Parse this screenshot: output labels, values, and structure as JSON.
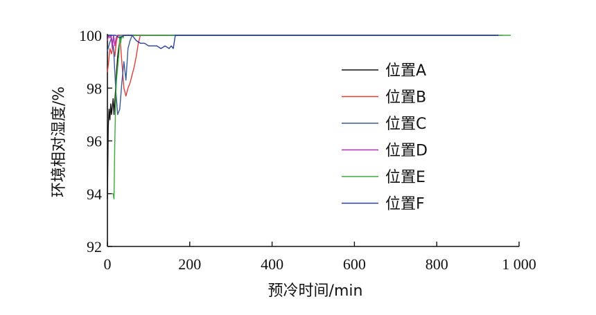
{
  "chart_data": {
    "type": "line",
    "xlabel": "预冷时间/min",
    "ylabel": "环境相对湿度/%",
    "xlim": [
      0,
      1000
    ],
    "ylim": [
      92,
      100
    ],
    "xticks": [
      0,
      200,
      400,
      600,
      800,
      1000
    ],
    "xtick_labels": [
      "0",
      "200",
      "400",
      "600",
      "800",
      "1 000"
    ],
    "yticks": [
      92,
      94,
      96,
      98,
      100
    ],
    "ytick_labels": [
      "92",
      "94",
      "96",
      "98",
      "100"
    ],
    "grid": false,
    "legend_position": "right",
    "series": [
      {
        "name": "位置A",
        "color": "#111111",
        "x": [
          0,
          2,
          4,
          6,
          8,
          10,
          12,
          14,
          16,
          18,
          20,
          22,
          25,
          28,
          32,
          36,
          40,
          950
        ],
        "y": [
          93.8,
          96.5,
          97.2,
          96.8,
          97.4,
          97.0,
          97.3,
          97.6,
          97.0,
          97.5,
          98.0,
          98.6,
          99.2,
          99.6,
          99.9,
          100,
          100,
          100
        ]
      },
      {
        "name": "位置B",
        "color": "#e03c3c",
        "x": [
          0,
          3,
          6,
          10,
          14,
          18,
          22,
          26,
          30,
          35,
          40,
          45,
          50,
          55,
          60,
          65,
          70,
          75,
          80,
          85,
          940
        ],
        "y": [
          98.6,
          99.0,
          99.5,
          99.3,
          99.6,
          99.2,
          99.8,
          100,
          100,
          99.0,
          98.0,
          97.7,
          98.0,
          98.2,
          98.5,
          98.8,
          99.2,
          99.7,
          100,
          100,
          100
        ]
      },
      {
        "name": "位置C",
        "color": "#3a5a9a",
        "x": [
          0,
          5,
          10,
          15,
          20,
          25,
          30,
          35,
          40,
          45,
          50,
          55,
          60,
          70,
          950
        ],
        "y": [
          99.4,
          99.7,
          99.9,
          99.5,
          98.0,
          97.0,
          97.2,
          98.2,
          99.0,
          98.3,
          99.5,
          99.8,
          100,
          100,
          100
        ]
      },
      {
        "name": "位置D",
        "color": "#b02fb0",
        "x": [
          0,
          3,
          6,
          9,
          12,
          15,
          18,
          21,
          25,
          30,
          960
        ],
        "y": [
          99.8,
          100,
          99.9,
          100,
          99.5,
          100,
          99.6,
          99.9,
          100,
          100,
          100
        ]
      },
      {
        "name": "位置E",
        "color": "#3cab3c",
        "x": [
          10,
          14,
          16,
          18,
          20,
          22,
          25,
          28,
          30,
          32,
          35,
          38,
          40,
          45,
          50,
          980
        ],
        "y": [
          94.0,
          94.0,
          93.8,
          96.0,
          97.5,
          98.3,
          98.8,
          99.3,
          100,
          99.7,
          100,
          99.9,
          100,
          100,
          100,
          100
        ]
      },
      {
        "name": "位置F",
        "color": "#2a3f9a",
        "x": [
          0,
          20,
          30,
          40,
          50,
          60,
          70,
          80,
          90,
          100,
          110,
          120,
          130,
          140,
          150,
          155,
          160,
          165,
          170,
          950
        ],
        "y": [
          100,
          100,
          99.9,
          100,
          100,
          100,
          99.8,
          99.7,
          99.7,
          99.6,
          99.6,
          99.6,
          99.5,
          99.6,
          99.5,
          99.6,
          99.5,
          100,
          100,
          100
        ]
      }
    ]
  }
}
